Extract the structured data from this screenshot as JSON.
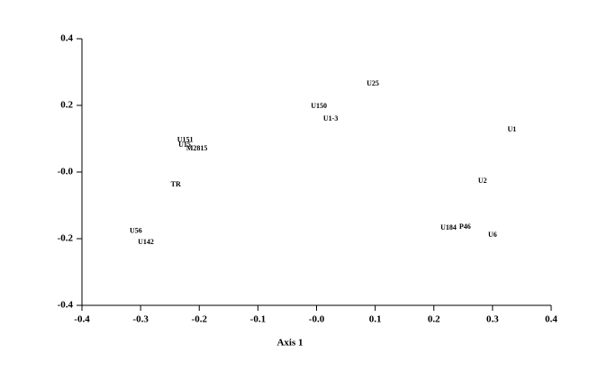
{
  "chart_data": {
    "type": "scatter",
    "x_label": "Axis 1",
    "points": [
      {
        "label": "U25",
        "x": 0.096,
        "y": 0.265
      },
      {
        "label": "U150",
        "x": 0.004,
        "y": 0.197
      },
      {
        "label": "U1-3",
        "x": 0.024,
        "y": 0.159
      },
      {
        "label": "U1",
        "x": 0.333,
        "y": 0.127
      },
      {
        "label": "U151",
        "x": -0.224,
        "y": 0.095
      },
      {
        "label": "U15",
        "x": -0.225,
        "y": 0.081
      },
      {
        "label": "M2815",
        "x": -0.204,
        "y": 0.07
      },
      {
        "label": "TR",
        "x": -0.24,
        "y": -0.038
      },
      {
        "label": "U2",
        "x": 0.283,
        "y": -0.027
      },
      {
        "label": "U56",
        "x": -0.308,
        "y": -0.178
      },
      {
        "label": "U142",
        "x": -0.291,
        "y": -0.211
      },
      {
        "label": "U184",
        "x": 0.225,
        "y": -0.168
      },
      {
        "label": "P46",
        "x": 0.253,
        "y": -0.165
      },
      {
        "label": "U6",
        "x": 0.3,
        "y": -0.189
      }
    ],
    "xlim": [
      -0.4,
      0.4
    ],
    "xticks": [
      -0.4,
      -0.3,
      -0.2,
      -0.1,
      {
        "value": 0,
        "label": "-0.0"
      },
      0.1,
      0.2,
      0.3,
      0.4
    ],
    "ylim": [
      -0.4,
      0.4
    ],
    "yticks": [
      -0.4,
      -0.2,
      {
        "value": 0,
        "label": "-0.0"
      },
      0.2,
      0.4
    ]
  }
}
